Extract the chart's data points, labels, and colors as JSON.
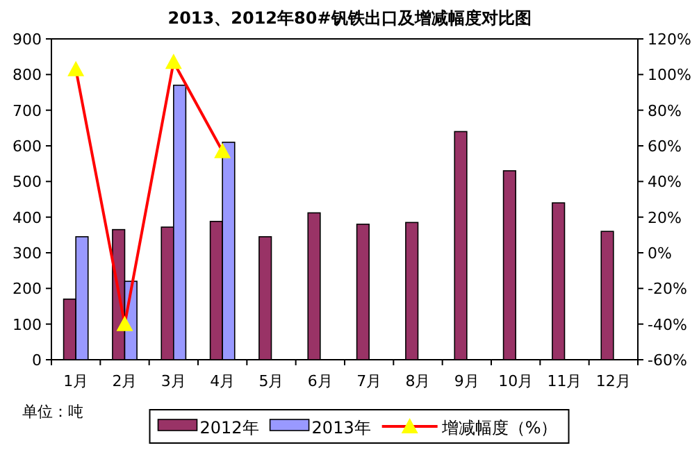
{
  "chart_data": {
    "type": "bar",
    "title": "2013、2012年80#钒铁出口及增减幅度对比图",
    "categories": [
      "1月",
      "2月",
      "3月",
      "4月",
      "5月",
      "6月",
      "7月",
      "8月",
      "9月",
      "10月",
      "11月",
      "12月"
    ],
    "series": [
      {
        "name": "2012年",
        "color": "#993366",
        "values": [
          170,
          365,
          372,
          388,
          345,
          412,
          380,
          385,
          640,
          530,
          440,
          360
        ]
      },
      {
        "name": "2013年",
        "color": "#9999ff",
        "values": [
          345,
          220,
          770,
          610,
          null,
          null,
          null,
          null,
          null,
          null,
          null,
          null
        ]
      },
      {
        "name": "增减幅度（%）",
        "type": "line",
        "axis": "y2",
        "color": "#ff0000",
        "marker": "triangle",
        "values": [
          103,
          -40,
          107,
          57,
          null,
          null,
          null,
          null,
          null,
          null,
          null,
          null
        ]
      }
    ],
    "ylim": [
      0,
      900
    ],
    "yticks": [
      0,
      100,
      200,
      300,
      400,
      500,
      600,
      700,
      800,
      900
    ],
    "y2lim": [
      -60,
      120
    ],
    "y2ticks": [
      {
        "value": -60,
        "label": "-60%"
      },
      {
        "value": -40,
        "label": "-40%"
      },
      {
        "value": -20,
        "label": "-20%"
      },
      {
        "value": 0,
        "label": "0%"
      },
      {
        "value": 20,
        "label": "20%"
      },
      {
        "value": 40,
        "label": "40%"
      },
      {
        "value": 60,
        "label": "60%"
      },
      {
        "value": 80,
        "label": "80%"
      },
      {
        "value": 100,
        "label": "100%"
      },
      {
        "value": 120,
        "label": "120%"
      }
    ],
    "grid": false,
    "legend": "bottom",
    "annotations": [
      "单位：吨"
    ]
  }
}
